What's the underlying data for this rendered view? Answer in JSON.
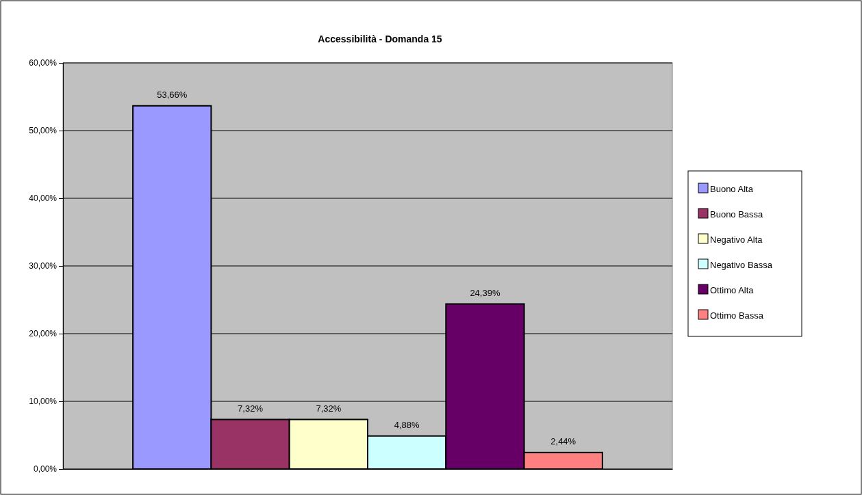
{
  "chart_data": {
    "type": "bar",
    "title": "Accessibilità - Domanda 15",
    "categories": [
      null
    ],
    "series": [
      {
        "name": "Buono Alta",
        "color": "#9999ff",
        "values": [
          53.66
        ],
        "value_labels": [
          "53,66%"
        ]
      },
      {
        "name": "Buono Bassa",
        "color": "#993366",
        "values": [
          7.32
        ],
        "value_labels": [
          "7,32%"
        ]
      },
      {
        "name": "Negativo Alta",
        "color": "#ffffcc",
        "values": [
          7.32
        ],
        "value_labels": [
          "7,32%"
        ]
      },
      {
        "name": "Negativo Bassa",
        "color": "#ccffff",
        "values": [
          4.88
        ],
        "value_labels": [
          "4,88%"
        ]
      },
      {
        "name": "Ottimo Alta",
        "color": "#660066",
        "values": [
          24.39
        ],
        "value_labels": [
          "24,39%"
        ]
      },
      {
        "name": "Ottimo Bassa",
        "color": "#ff8080",
        "values": [
          2.44
        ],
        "value_labels": [
          "2,44%"
        ]
      }
    ],
    "ylim": [
      0,
      60
    ],
    "yticks": [
      {
        "value": 0,
        "label": "0,00%"
      },
      {
        "value": 10,
        "label": "10,00%"
      },
      {
        "value": 20,
        "label": "20,00%"
      },
      {
        "value": 30,
        "label": "30,00%"
      },
      {
        "value": 40,
        "label": "40,00%"
      },
      {
        "value": 50,
        "label": "50,00%"
      },
      {
        "value": 60,
        "label": "60,00%"
      }
    ],
    "grid": "y",
    "legend": "right",
    "tick_labels": "y"
  }
}
